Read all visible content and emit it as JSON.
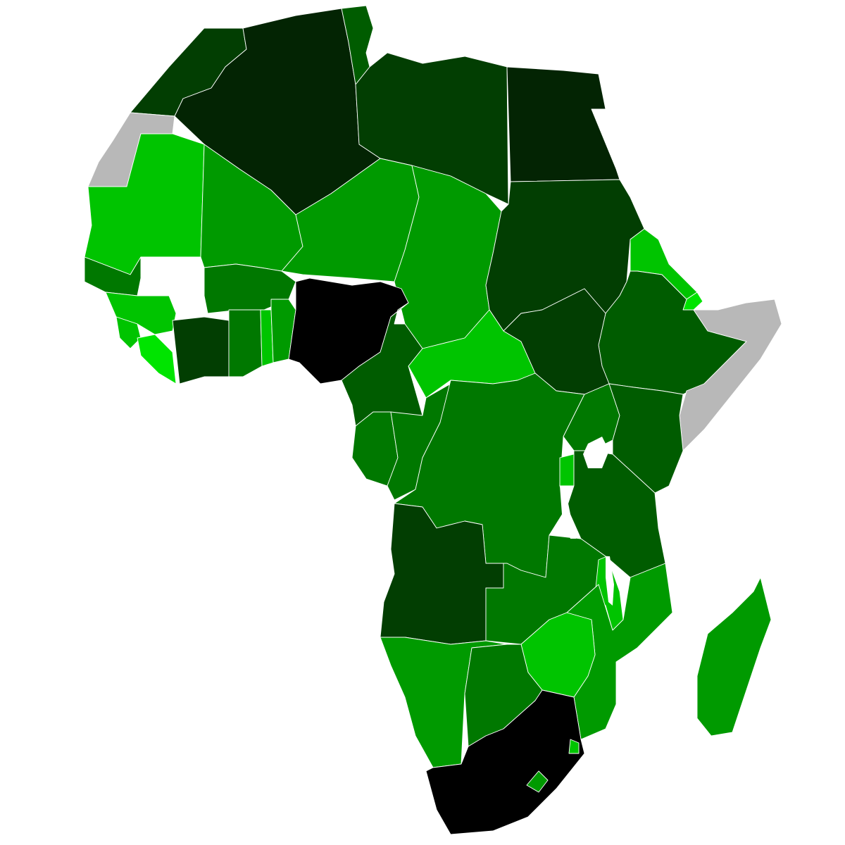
{
  "map": {
    "title": "",
    "palette": {
      "black": "#000000",
      "darkest": "#032403",
      "very_dark": "#023e02",
      "dark": "#005c00",
      "medium_dark": "#007800",
      "medium": "#009a00",
      "bright": "#00c400",
      "brightest": "#00e400",
      "no_data": "#b8b8b8",
      "water": "#ffffff",
      "border": "#ffffff"
    },
    "regions": [
      {
        "id": "morocco",
        "shade": "very_dark"
      },
      {
        "id": "algeria",
        "shade": "darkest"
      },
      {
        "id": "tunisia",
        "shade": "dark"
      },
      {
        "id": "libya",
        "shade": "very_dark"
      },
      {
        "id": "egypt",
        "shade": "darkest"
      },
      {
        "id": "western-sahara",
        "shade": "no_data"
      },
      {
        "id": "mauritania",
        "shade": "bright"
      },
      {
        "id": "mali",
        "shade": "medium"
      },
      {
        "id": "niger",
        "shade": "medium"
      },
      {
        "id": "chad",
        "shade": "medium"
      },
      {
        "id": "sudan",
        "shade": "very_dark"
      },
      {
        "id": "eritrea",
        "shade": "bright"
      },
      {
        "id": "djibouti",
        "shade": "brightest"
      },
      {
        "id": "ethiopia",
        "shade": "dark"
      },
      {
        "id": "somalia",
        "shade": "no_data"
      },
      {
        "id": "senegal",
        "shade": "medium_dark"
      },
      {
        "id": "guinea",
        "shade": "bright"
      },
      {
        "id": "sierra-leone",
        "shade": "bright"
      },
      {
        "id": "liberia",
        "shade": "brightest"
      },
      {
        "id": "burkina-faso",
        "shade": "medium_dark"
      },
      {
        "id": "ivory-coast",
        "shade": "very_dark"
      },
      {
        "id": "ghana",
        "shade": "medium_dark"
      },
      {
        "id": "togo",
        "shade": "bright"
      },
      {
        "id": "benin",
        "shade": "medium"
      },
      {
        "id": "nigeria",
        "shade": "black"
      },
      {
        "id": "cameroon",
        "shade": "dark"
      },
      {
        "id": "central-african-republic",
        "shade": "bright"
      },
      {
        "id": "south-sudan",
        "shade": "very_dark"
      },
      {
        "id": "gabon",
        "shade": "medium_dark"
      },
      {
        "id": "congo",
        "shade": "medium_dark"
      },
      {
        "id": "dr-congo",
        "shade": "medium_dark"
      },
      {
        "id": "uganda",
        "shade": "medium_dark"
      },
      {
        "id": "kenya",
        "shade": "dark"
      },
      {
        "id": "rwanda-burundi",
        "shade": "bright"
      },
      {
        "id": "tanzania",
        "shade": "dark"
      },
      {
        "id": "angola",
        "shade": "very_dark"
      },
      {
        "id": "zambia",
        "shade": "medium_dark"
      },
      {
        "id": "malawi",
        "shade": "bright"
      },
      {
        "id": "mozambique",
        "shade": "medium"
      },
      {
        "id": "zimbabwe",
        "shade": "bright"
      },
      {
        "id": "namibia",
        "shade": "medium"
      },
      {
        "id": "botswana",
        "shade": "medium_dark"
      },
      {
        "id": "south-africa",
        "shade": "black"
      },
      {
        "id": "lesotho",
        "shade": "medium"
      },
      {
        "id": "eswatini",
        "shade": "bright"
      },
      {
        "id": "madagascar",
        "shade": "medium"
      }
    ]
  }
}
